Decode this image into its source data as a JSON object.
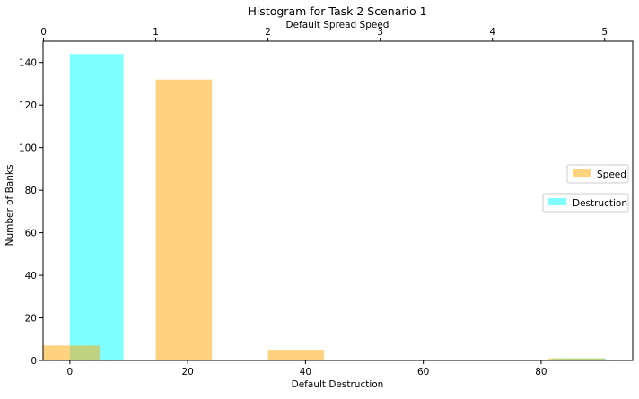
{
  "chart_data": {
    "type": "bar",
    "title": "Histogram for Task 2 Scenario 1",
    "ylabel": "Number of Banks",
    "ylim": [
      0,
      150
    ],
    "yticks": [
      0,
      20,
      40,
      60,
      80,
      100,
      120,
      140
    ],
    "grid": false,
    "bottom_axis": {
      "label": "Default Destruction",
      "range": [
        -4.55,
        95.55
      ],
      "ticks": [
        0,
        20,
        40,
        60,
        80
      ]
    },
    "top_axis": {
      "label": "Default Spread Speed",
      "range": [
        -0.0044,
        5.25
      ],
      "ticks": [
        0,
        1,
        2,
        3,
        4,
        5
      ]
    },
    "series": [
      {
        "name": "Destruction",
        "axis": "bottom",
        "color": "#00ffff",
        "opacity": 0.5,
        "bins": [
          {
            "x0": 0,
            "x1": 9.1,
            "count": 144
          },
          {
            "x0": 81.9,
            "x1": 91.0,
            "count": 1
          }
        ]
      },
      {
        "name": "Speed",
        "axis": "top",
        "color": "#ffa500",
        "opacity": 0.5,
        "bins": [
          {
            "x0": 0,
            "x1": 0.5,
            "count": 7
          },
          {
            "x0": 1.0,
            "x1": 1.5,
            "count": 132
          },
          {
            "x0": 2.0,
            "x1": 2.5,
            "count": 5
          },
          {
            "x0": 4.5,
            "x1": 5.0,
            "count": 1
          }
        ]
      }
    ],
    "legend": [
      {
        "label": "Speed",
        "color": "#ffa500",
        "placement": "right"
      },
      {
        "label": "Destruction",
        "color": "#00ffff",
        "placement": "right"
      }
    ]
  }
}
